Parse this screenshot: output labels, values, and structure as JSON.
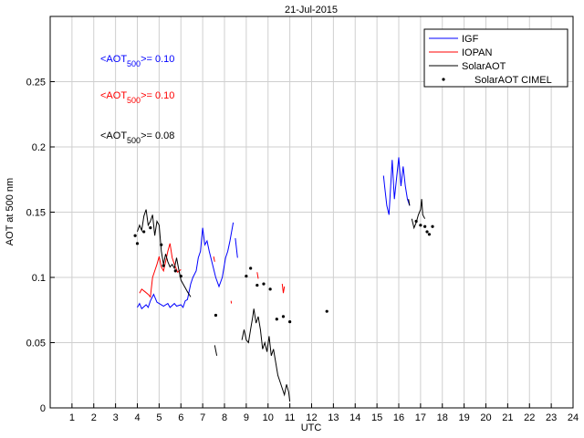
{
  "chart_data": {
    "type": "line",
    "title": "21-Jul-2015",
    "xlabel": "UTC",
    "ylabel": "AOT at 500 nm",
    "xlim": [
      0,
      24
    ],
    "ylim": [
      0,
      0.3
    ],
    "xticks": [
      1,
      2,
      3,
      4,
      5,
      6,
      7,
      8,
      9,
      10,
      11,
      12,
      13,
      14,
      15,
      16,
      17,
      18,
      19,
      20,
      21,
      22,
      23,
      24
    ],
    "yticks": [
      0,
      0.05,
      0.1,
      0.15,
      0.2,
      0.25
    ],
    "ytick_labels": [
      "0",
      "0.05",
      "0.1",
      "0.15",
      "0.2",
      "0.25"
    ],
    "grid": true,
    "legend_position": "top-right",
    "annotations": [
      {
        "prefix": "<AOT",
        "sub": "500",
        "suffix": ">= 0.10",
        "color": "#0000ff"
      },
      {
        "prefix": "<AOT",
        "sub": "500",
        "suffix": ">= 0.10",
        "color": "#ff0000"
      },
      {
        "prefix": "<AOT",
        "sub": "500",
        "suffix": ">= 0.08",
        "color": "#000000"
      }
    ],
    "series": [
      {
        "name": "IGF",
        "color": "#0000ff",
        "style": "line",
        "segments": [
          [
            [
              4.0,
              0.077
            ],
            [
              4.1,
              0.08
            ],
            [
              4.2,
              0.076
            ],
            [
              4.4,
              0.079
            ],
            [
              4.5,
              0.077
            ],
            [
              4.6,
              0.082
            ],
            [
              4.75,
              0.087
            ],
            [
              4.9,
              0.081
            ],
            [
              5.0,
              0.08
            ],
            [
              5.2,
              0.078
            ],
            [
              5.4,
              0.08
            ],
            [
              5.5,
              0.077
            ],
            [
              5.7,
              0.08
            ],
            [
              5.8,
              0.078
            ],
            [
              6.0,
              0.079
            ],
            [
              6.1,
              0.077
            ],
            [
              6.2,
              0.082
            ],
            [
              6.3,
              0.083
            ],
            [
              6.45,
              0.095
            ],
            [
              6.55,
              0.1
            ],
            [
              6.7,
              0.105
            ],
            [
              6.8,
              0.115
            ],
            [
              6.9,
              0.12
            ],
            [
              7.0,
              0.138
            ],
            [
              7.1,
              0.125
            ],
            [
              7.2,
              0.128
            ],
            [
              7.3,
              0.12
            ],
            [
              7.45,
              0.11
            ],
            [
              7.6,
              0.1
            ],
            [
              7.75,
              0.093
            ],
            [
              7.9,
              0.1
            ],
            [
              8.05,
              0.115
            ],
            [
              8.15,
              0.12
            ],
            [
              8.25,
              0.128
            ],
            [
              8.4,
              0.142
            ]
          ],
          [
            [
              8.5,
              0.13
            ],
            [
              8.6,
              0.115
            ]
          ],
          [
            [
              15.3,
              0.178
            ],
            [
              15.35,
              0.17
            ],
            [
              15.45,
              0.155
            ],
            [
              15.55,
              0.148
            ],
            [
              15.7,
              0.19
            ],
            [
              15.8,
              0.16
            ],
            [
              15.9,
              0.176
            ],
            [
              16.0,
              0.192
            ],
            [
              16.1,
              0.17
            ],
            [
              16.2,
              0.185
            ],
            [
              16.3,
              0.17
            ],
            [
              16.4,
              0.16
            ],
            [
              16.5,
              0.155
            ]
          ]
        ]
      },
      {
        "name": "IOPAN",
        "color": "#ff0000",
        "style": "line",
        "segments": [
          [
            [
              4.1,
              0.088
            ],
            [
              4.2,
              0.091
            ],
            [
              4.35,
              0.089
            ],
            [
              4.5,
              0.087
            ],
            [
              4.6,
              0.085
            ],
            [
              4.7,
              0.1
            ],
            [
              4.8,
              0.105
            ],
            [
              4.9,
              0.11
            ],
            [
              5.0,
              0.116
            ],
            [
              5.1,
              0.108
            ],
            [
              5.2,
              0.105
            ],
            [
              5.3,
              0.112
            ],
            [
              5.4,
              0.12
            ],
            [
              5.5,
              0.126
            ],
            [
              5.6,
              0.115
            ],
            [
              5.7,
              0.11
            ],
            [
              5.85,
              0.104
            ],
            [
              6.0,
              0.106
            ]
          ],
          [
            [
              7.5,
              0.116
            ],
            [
              7.55,
              0.112
            ]
          ],
          [
            [
              8.3,
              0.082
            ],
            [
              8.32,
              0.08
            ]
          ],
          [
            [
              9.5,
              0.104
            ],
            [
              9.55,
              0.099
            ]
          ],
          [
            [
              10.65,
              0.095
            ],
            [
              10.7,
              0.088
            ],
            [
              10.75,
              0.093
            ]
          ]
        ]
      },
      {
        "name": "SolarAOT",
        "color": "#000000",
        "style": "line",
        "segments": [
          [
            [
              4.0,
              0.135
            ],
            [
              4.1,
              0.14
            ],
            [
              4.2,
              0.136
            ],
            [
              4.3,
              0.147
            ],
            [
              4.4,
              0.152
            ],
            [
              4.5,
              0.14
            ],
            [
              4.6,
              0.143
            ],
            [
              4.7,
              0.148
            ],
            [
              4.8,
              0.132
            ],
            [
              4.9,
              0.143
            ],
            [
              5.0,
              0.14
            ],
            [
              5.1,
              0.12
            ],
            [
              5.2,
              0.11
            ],
            [
              5.3,
              0.118
            ],
            [
              5.4,
              0.112
            ],
            [
              5.5,
              0.108
            ],
            [
              5.6,
              0.11
            ],
            [
              5.7,
              0.107
            ],
            [
              5.8,
              0.115
            ],
            [
              5.9,
              0.106
            ],
            [
              6.0,
              0.098
            ],
            [
              6.1,
              0.095
            ],
            [
              6.2,
              0.092
            ],
            [
              6.3,
              0.089
            ],
            [
              6.45,
              0.085
            ]
          ],
          [
            [
              7.55,
              0.048
            ],
            [
              7.65,
              0.04
            ]
          ],
          [
            [
              8.8,
              0.052
            ],
            [
              8.9,
              0.06
            ],
            [
              9.0,
              0.052
            ],
            [
              9.1,
              0.05
            ],
            [
              9.2,
              0.06
            ],
            [
              9.3,
              0.07
            ],
            [
              9.35,
              0.076
            ],
            [
              9.45,
              0.065
            ],
            [
              9.55,
              0.07
            ],
            [
              9.65,
              0.06
            ],
            [
              9.75,
              0.045
            ],
            [
              9.85,
              0.05
            ],
            [
              9.95,
              0.043
            ],
            [
              10.05,
              0.055
            ],
            [
              10.15,
              0.04
            ],
            [
              10.25,
              0.045
            ],
            [
              10.35,
              0.035
            ],
            [
              10.45,
              0.025
            ],
            [
              10.55,
              0.02
            ],
            [
              10.65,
              0.015
            ],
            [
              10.75,
              0.01
            ],
            [
              10.85,
              0.018
            ],
            [
              10.95,
              0.012
            ],
            [
              11.0,
              0.005
            ]
          ],
          [
            [
              16.45,
              0.16
            ],
            [
              16.5,
              0.155
            ]
          ],
          [
            [
              16.6,
              0.145
            ],
            [
              16.7,
              0.138
            ],
            [
              16.8,
              0.142
            ],
            [
              16.9,
              0.148
            ],
            [
              17.0,
              0.152
            ],
            [
              17.05,
              0.16
            ],
            [
              17.1,
              0.148
            ],
            [
              17.2,
              0.145
            ]
          ]
        ]
      },
      {
        "name": "SolarAOT CIMEL",
        "color": "#000000",
        "style": "dots",
        "points": [
          [
            3.9,
            0.132
          ],
          [
            4.0,
            0.126
          ],
          [
            4.3,
            0.135
          ],
          [
            4.6,
            0.138
          ],
          [
            5.1,
            0.125
          ],
          [
            5.2,
            0.109
          ],
          [
            5.75,
            0.105
          ],
          [
            6.0,
            0.101
          ],
          [
            7.6,
            0.071
          ],
          [
            9.0,
            0.101
          ],
          [
            9.2,
            0.107
          ],
          [
            9.5,
            0.094
          ],
          [
            9.8,
            0.095
          ],
          [
            10.1,
            0.091
          ],
          [
            10.4,
            0.068
          ],
          [
            10.7,
            0.07
          ],
          [
            11.0,
            0.066
          ],
          [
            12.7,
            0.074
          ],
          [
            16.8,
            0.143
          ],
          [
            17.0,
            0.14
          ],
          [
            17.2,
            0.139
          ],
          [
            17.3,
            0.135
          ],
          [
            17.4,
            0.133
          ],
          [
            17.55,
            0.139
          ]
        ]
      }
    ]
  }
}
